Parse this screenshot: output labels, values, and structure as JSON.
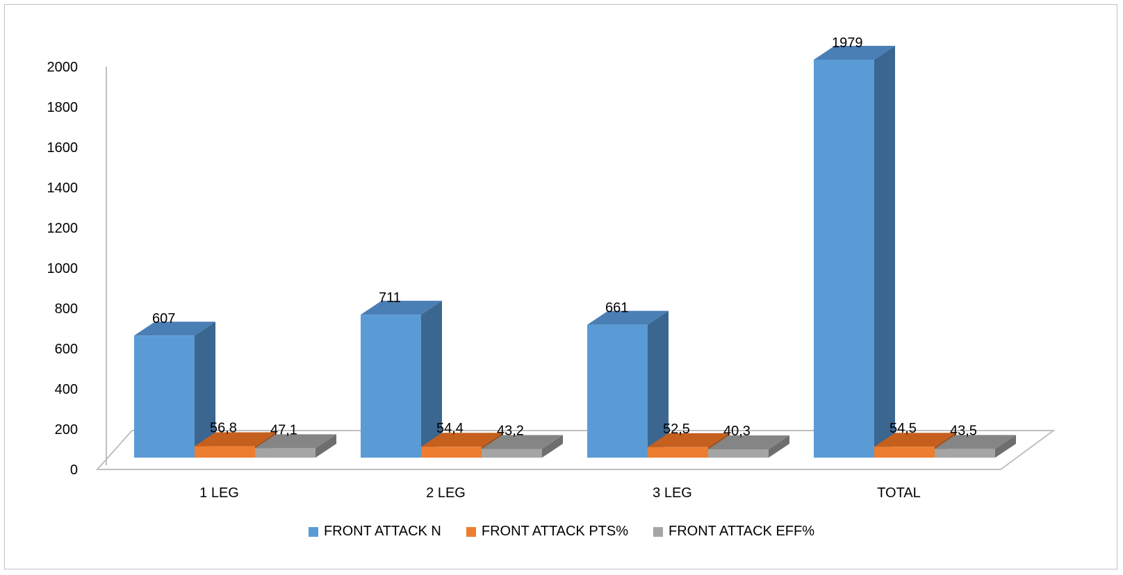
{
  "chart_data": {
    "type": "bar",
    "title": "",
    "xlabel": "",
    "ylabel": "",
    "ylim": [
      0,
      2000
    ],
    "yticks": [
      0,
      200,
      400,
      600,
      800,
      1000,
      1200,
      1400,
      1600,
      1800,
      2000
    ],
    "categories": [
      "1 LEG",
      "2 LEG",
      "3 LEG",
      "TOTAL"
    ],
    "series": [
      {
        "name": "FRONT ATTACK N",
        "values": [
          607,
          711,
          661,
          1979
        ],
        "labels": [
          "607",
          "711",
          "661",
          "1979"
        ],
        "color": "#5b9bd5",
        "side_color": "#3a6690",
        "top_color": "#4a7fb5"
      },
      {
        "name": "FRONT ATTACK PTS%",
        "values": [
          56.8,
          54.4,
          52.5,
          54.5
        ],
        "labels": [
          "56,8",
          "54,4",
          "52,5",
          "54,5"
        ],
        "color": "#ed7d31",
        "side_color": "#a0521f",
        "top_color": "#c45f1e"
      },
      {
        "name": "FRONT ATTACK EFF%",
        "values": [
          47.1,
          43.2,
          40.3,
          43.5
        ],
        "labels": [
          "47,1",
          "43,2",
          "40,3",
          "43,5"
        ],
        "color": "#a5a5a5",
        "side_color": "#6e6e6e",
        "top_color": "#858585"
      }
    ],
    "legend_position": "bottom",
    "grid": false,
    "style": "3d-column"
  }
}
